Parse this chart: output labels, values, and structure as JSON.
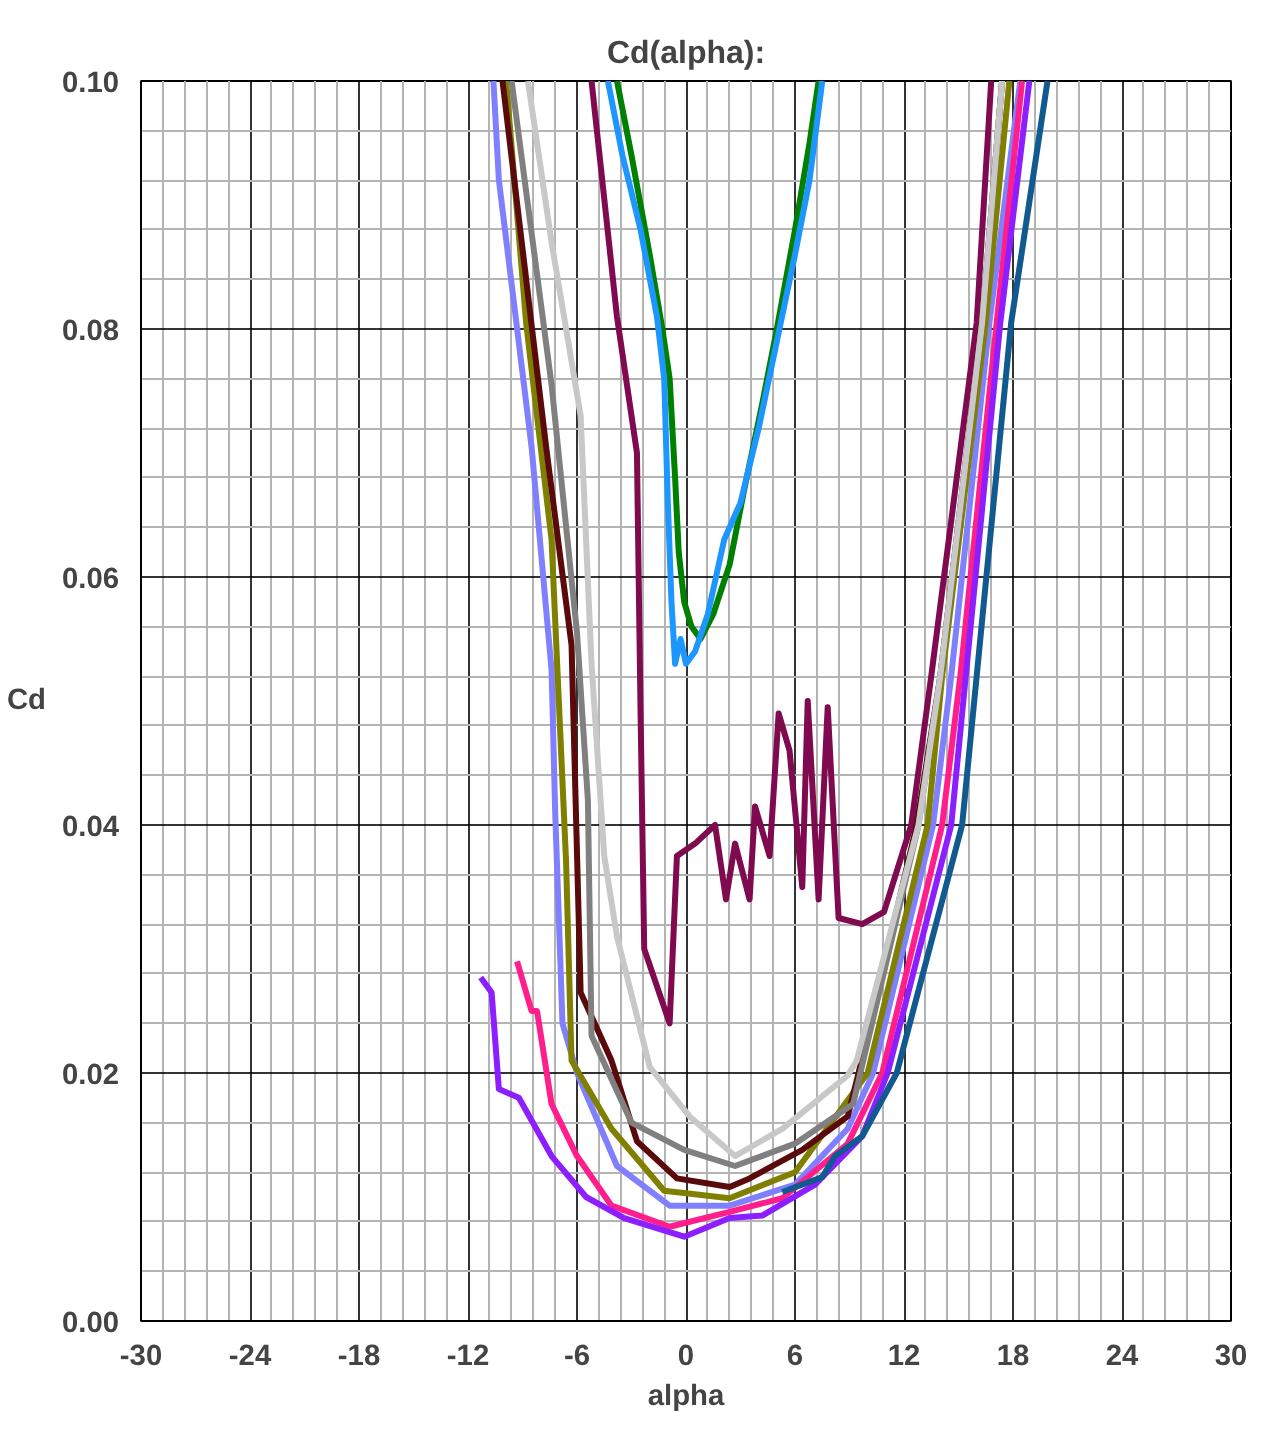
{
  "chart_data": {
    "type": "line",
    "title": "Cd(alpha):",
    "xlabel": "alpha",
    "ylabel": "Cd",
    "xlim": [
      -30,
      30
    ],
    "xticks": [
      -30,
      -24,
      -18,
      -12,
      -6,
      0,
      6,
      12,
      18,
      24,
      30
    ],
    "ylim": [
      0,
      0.1
    ],
    "yticks": [
      {
        "value": 0,
        "label": "0.00"
      },
      {
        "value": 0.02,
        "label": "0.02"
      },
      {
        "value": 0.04,
        "label": "0.04"
      },
      {
        "value": 0.06,
        "label": "0.06"
      },
      {
        "value": 0.08,
        "label": "0.08"
      },
      {
        "value": 0.1,
        "label": "0.10"
      }
    ],
    "grid": true,
    "marker": "none",
    "line_style": "solid",
    "series": [
      {
        "color": "#008000",
        "x": [
          -3.8,
          -3.0,
          -2.0,
          -1.3,
          -0.9,
          -0.6,
          -0.4,
          -0.1,
          0.3,
          0.8,
          1.5,
          2.4,
          3.2,
          4.2,
          5.0,
          6.0,
          6.8,
          7.3
        ],
        "values": [
          0.1,
          0.094,
          0.086,
          0.08,
          0.076,
          0.068,
          0.062,
          0.058,
          0.056,
          0.055,
          0.057,
          0.061,
          0.067,
          0.074,
          0.08,
          0.088,
          0.095,
          0.1
        ]
      },
      {
        "color": "#1e96ff",
        "x": [
          -4.3,
          -3.5,
          -2.5,
          -1.6,
          -1.2,
          -1.0,
          -0.8,
          -0.6,
          -0.3,
          0.0,
          0.5,
          1.2,
          2.1,
          3.0,
          4.0,
          5.0,
          6.0,
          6.8,
          7.5
        ],
        "values": [
          0.1,
          0.094,
          0.088,
          0.081,
          0.076,
          0.066,
          0.058,
          0.053,
          0.055,
          0.053,
          0.054,
          0.057,
          0.063,
          0.066,
          0.072,
          0.079,
          0.086,
          0.092,
          0.1
        ]
      },
      {
        "color": "#800a50",
        "x": [
          -5.2,
          -3.8,
          -2.7,
          -2.5,
          -2.3,
          -0.9,
          -0.5,
          0.5,
          1.6,
          2.2,
          2.7,
          3.5,
          3.8,
          4.6,
          5.1,
          5.7,
          6.4,
          6.7,
          7.3,
          7.8,
          8.4,
          9.7,
          10.9,
          12.4,
          13.5,
          16.0,
          16.8
        ],
        "values": [
          0.1,
          0.081,
          0.07,
          0.049,
          0.03,
          0.024,
          0.0375,
          0.0385,
          0.04,
          0.034,
          0.0385,
          0.034,
          0.0415,
          0.0375,
          0.049,
          0.046,
          0.035,
          0.05,
          0.034,
          0.0495,
          0.0325,
          0.032,
          0.033,
          0.04,
          0.052,
          0.0805,
          0.1
        ]
      },
      {
        "color": "#8080ff",
        "x": [
          -10.6,
          -10.3,
          -8.5,
          -7.4,
          -7.2,
          -6.8,
          -6.0,
          -3.8,
          -0.9,
          2.4,
          6.0,
          8.9,
          10.3,
          13.6,
          14.6,
          16.7,
          18.4
        ],
        "values": [
          0.1,
          0.092,
          0.0705,
          0.0525,
          0.041,
          0.024,
          0.02,
          0.0125,
          0.0093,
          0.0093,
          0.011,
          0.0155,
          0.02,
          0.04,
          0.052,
          0.0805,
          0.1
        ]
      },
      {
        "color": "#808000",
        "x": [
          -9.9,
          -8.8,
          -7.4,
          -6.6,
          -6.3,
          -4.1,
          -1.2,
          2.4,
          6.0,
          10.0,
          13.3,
          14.1,
          16.5,
          17.8
        ],
        "values": [
          0.1,
          0.0805,
          0.063,
          0.037,
          0.021,
          0.0155,
          0.0105,
          0.0099,
          0.012,
          0.02,
          0.04,
          0.052,
          0.0805,
          0.1
        ]
      },
      {
        "color": "#5a0a0a",
        "x": [
          -10.1,
          -7.7,
          -6.3,
          -5.8,
          -4.1,
          -2.7,
          -0.5,
          2.4,
          3.5,
          6.4,
          8.9,
          9.5,
          12.7,
          14.0,
          16.3,
          17.4
        ],
        "values": [
          0.1,
          0.0705,
          0.0545,
          0.0265,
          0.021,
          0.0145,
          0.0115,
          0.0108,
          0.0115,
          0.0138,
          0.0165,
          0.02,
          0.04,
          0.052,
          0.0805,
          0.1
        ]
      },
      {
        "color": "#808080",
        "x": [
          -9.6,
          -7.4,
          -6.0,
          -5.4,
          -5.2,
          -3.0,
          -0.1,
          2.7,
          6.0,
          9.2,
          9.6,
          12.8,
          14.0,
          16.3,
          17.4
        ],
        "values": [
          0.1,
          0.0755,
          0.0555,
          0.042,
          0.023,
          0.016,
          0.0138,
          0.0125,
          0.0143,
          0.0175,
          0.02,
          0.04,
          0.052,
          0.0805,
          0.1
        ]
      },
      {
        "color": "#c8c8c8",
        "x": [
          -8.7,
          -7.4,
          -5.8,
          -5.2,
          -4.5,
          -3.8,
          -2.0,
          0.2,
          2.7,
          5.3,
          8.9,
          9.4,
          12.8,
          14.0,
          16.3,
          17.4
        ],
        "values": [
          0.1,
          0.087,
          0.073,
          0.053,
          0.0375,
          0.031,
          0.0205,
          0.0165,
          0.0133,
          0.0155,
          0.0198,
          0.021,
          0.04,
          0.052,
          0.0805,
          0.1
        ]
      },
      {
        "color": "#ff1e8c",
        "x": [
          -9.3,
          -8.5,
          -8.2,
          -7.4,
          -6.0,
          -4.1,
          -0.9,
          2.4,
          5.3,
          8.9,
          10.8,
          14.1,
          15.1,
          17.1,
          18.5
        ],
        "values": [
          0.029,
          0.025,
          0.025,
          0.0175,
          0.0133,
          0.0093,
          0.0076,
          0.0088,
          0.0099,
          0.0143,
          0.02,
          0.04,
          0.052,
          0.0805,
          0.1
        ]
      },
      {
        "color": "#8c1eff",
        "x": [
          -11.3,
          -10.7,
          -10.3,
          -9.2,
          -7.4,
          -5.5,
          -3.4,
          -0.1,
          2.4,
          4.2,
          7.1,
          9.7,
          11.1,
          14.6,
          15.4,
          17.3,
          18.9
        ],
        "values": [
          0.0277,
          0.0265,
          0.0187,
          0.018,
          0.0133,
          0.01,
          0.0083,
          0.0068,
          0.0083,
          0.0085,
          0.011,
          0.0149,
          0.02,
          0.04,
          0.052,
          0.0805,
          0.1
        ]
      },
      {
        "color": "#105a90",
        "x": [
          5.3,
          7.5,
          8.2,
          9.7,
          11.6,
          15.2,
          16.0,
          17.9,
          19.9
        ],
        "values": [
          0.0104,
          0.0116,
          0.0133,
          0.0149,
          0.02,
          0.04,
          0.052,
          0.0805,
          0.1
        ]
      }
    ]
  }
}
